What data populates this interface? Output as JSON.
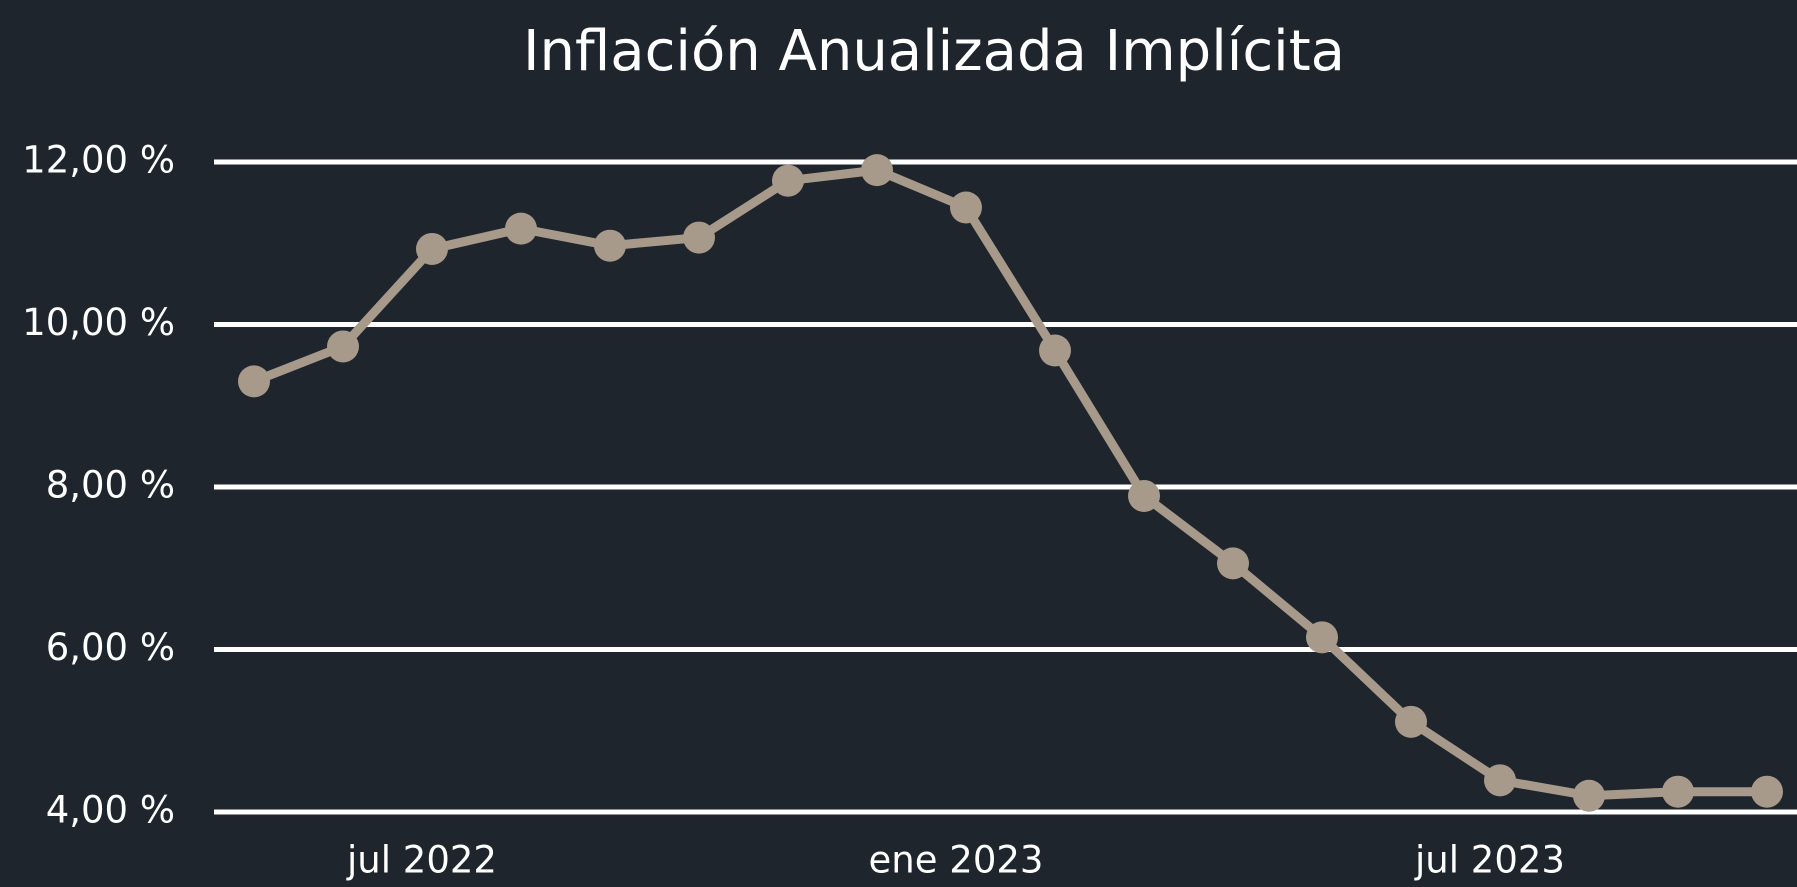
{
  "chart_data": {
    "type": "line",
    "title": "Inflación Anualizada Implícita",
    "x": [
      "2022-05",
      "2022-06",
      "2022-07",
      "2022-08",
      "2022-09",
      "2022-10",
      "2022-11",
      "2022-12",
      "2023-01",
      "2023-02",
      "2023-03",
      "2023-04",
      "2023-05",
      "2023-06",
      "2023-07",
      "2023-08",
      "2023-09",
      "2023-10"
    ],
    "series": [
      {
        "name": "Inflación Anualizada Implícita",
        "color": "#a89a8a",
        "values": [
          9.3,
          9.73,
          10.93,
          11.18,
          10.97,
          11.07,
          11.77,
          11.9,
          11.44,
          9.68,
          7.89,
          7.06,
          6.15,
          5.11,
          4.39,
          4.2,
          4.25,
          4.25
        ]
      }
    ],
    "xticks": [
      {
        "value": "2022-07",
        "label": "jul 2022"
      },
      {
        "value": "2023-01",
        "label": "ene 2023"
      },
      {
        "value": "2023-07",
        "label": "jul 2023"
      }
    ],
    "ylim": [
      4,
      12
    ],
    "yticks": [
      {
        "value": 4,
        "label": "4,00 %"
      },
      {
        "value": 6,
        "label": "6,00 %"
      },
      {
        "value": 8,
        "label": "8,00 %"
      },
      {
        "value": 10,
        "label": "10,00 %"
      },
      {
        "value": 12,
        "label": "12,00 %"
      }
    ],
    "grid": true
  }
}
